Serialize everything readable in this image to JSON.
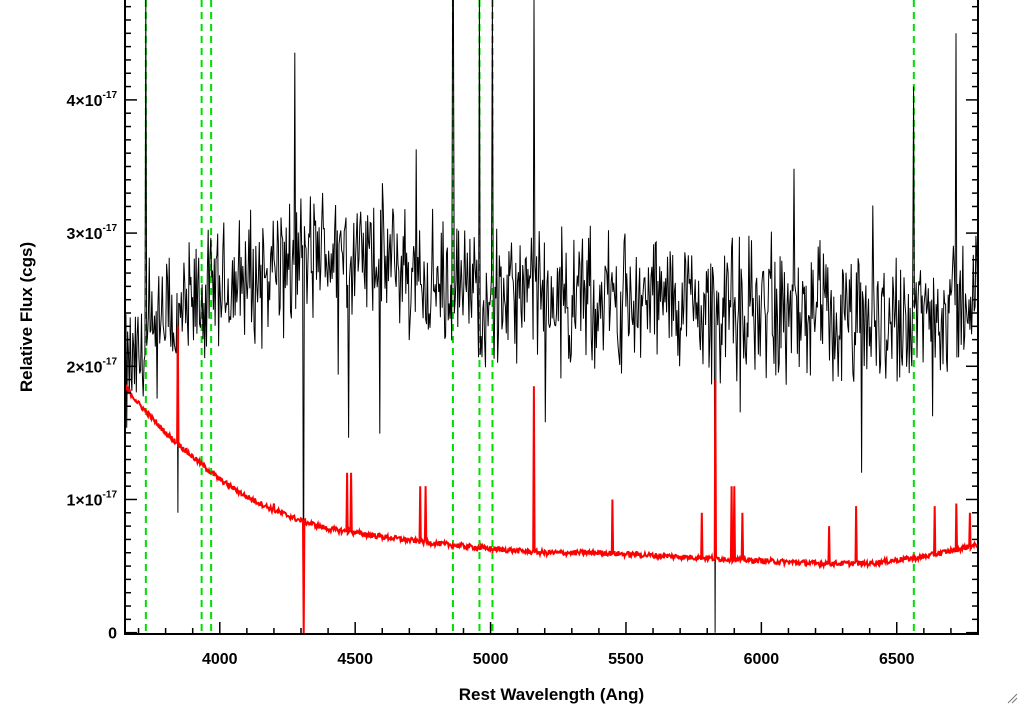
{
  "chart_data": {
    "type": "line",
    "xlabel": "Rest Wavelength (Ang)",
    "ylabel": "Relative Flux (cgs)",
    "xlim": [
      3650,
      6800
    ],
    "ylim": [
      -1e-19,
      4.75e-17
    ],
    "xticks": [
      4000,
      4500,
      5000,
      5500,
      6000,
      6500
    ],
    "xtick_labels": [
      "4000",
      "4500",
      "5000",
      "5500",
      "6000",
      "6500"
    ],
    "yticks": [
      0,
      1e-17,
      2e-17,
      3e-17,
      4e-17
    ],
    "ytick_labels": [
      {
        "base": "0",
        "exp": ""
      },
      {
        "base": "1×10",
        "exp": "-17"
      },
      {
        "base": "2×10",
        "exp": "-17"
      },
      {
        "base": "3×10",
        "exp": "-17"
      },
      {
        "base": "4×10",
        "exp": "-17"
      }
    ],
    "vertical_lines": [
      {
        "x": 3727,
        "style": "dashed",
        "color": "#00dd00"
      },
      {
        "x": 3933,
        "style": "dashed",
        "color": "#00dd00"
      },
      {
        "x": 3968,
        "style": "dashed",
        "color": "#00dd00"
      },
      {
        "x": 4861,
        "style": "dashed",
        "color": "#00dd00"
      },
      {
        "x": 4959,
        "style": "dashed",
        "color": "#00dd00"
      },
      {
        "x": 5007,
        "style": "dashed",
        "color": "#00dd00"
      },
      {
        "x": 6563,
        "style": "dashed",
        "color": "#00dd00"
      }
    ],
    "series": [
      {
        "role": "observed spectrum",
        "color": "#000000",
        "continuum": [
          {
            "x": 3650,
            "y": 1.9e-17
          },
          {
            "x": 3800,
            "y": 2.3e-17
          },
          {
            "x": 4000,
            "y": 2.55e-17
          },
          {
            "x": 4200,
            "y": 2.75e-17
          },
          {
            "x": 4400,
            "y": 2.85e-17
          },
          {
            "x": 4600,
            "y": 2.8e-17
          },
          {
            "x": 4800,
            "y": 2.6e-17
          },
          {
            "x": 5000,
            "y": 2.55e-17
          },
          {
            "x": 5200,
            "y": 2.5e-17
          },
          {
            "x": 5500,
            "y": 2.5e-17
          },
          {
            "x": 5800,
            "y": 2.45e-17
          },
          {
            "x": 6000,
            "y": 2.45e-17
          },
          {
            "x": 6300,
            "y": 2.3e-17
          },
          {
            "x": 6500,
            "y": 2.35e-17
          },
          {
            "x": 6800,
            "y": 2.5e-17
          }
        ],
        "noise_amplitude": 4.5e-18,
        "spikes": [
          {
            "x": 3727,
            "y": 4.75e-17
          },
          {
            "x": 3845,
            "y": 9e-18
          },
          {
            "x": 4310,
            "y": 0.0
          },
          {
            "x": 4861,
            "y": 4.75e-17
          },
          {
            "x": 4959,
            "y": 4.75e-17
          },
          {
            "x": 5007,
            "y": 4.75e-17
          },
          {
            "x": 5160,
            "y": 4.75e-17
          },
          {
            "x": 5830,
            "y": 0.0
          },
          {
            "x": 6563,
            "y": 4.1e-17
          },
          {
            "x": 6720,
            "y": 4.5e-17
          },
          {
            "x": 6370,
            "y": 1.2e-17
          }
        ]
      },
      {
        "role": "error spectrum",
        "color": "#ff0000",
        "curve": [
          {
            "x": 3650,
            "y": 1.85e-17
          },
          {
            "x": 3700,
            "y": 1.72e-17
          },
          {
            "x": 3800,
            "y": 1.5e-17
          },
          {
            "x": 3900,
            "y": 1.32e-17
          },
          {
            "x": 4000,
            "y": 1.15e-17
          },
          {
            "x": 4100,
            "y": 1.02e-17
          },
          {
            "x": 4200,
            "y": 9.2e-18
          },
          {
            "x": 4300,
            "y": 8.4e-18
          },
          {
            "x": 4400,
            "y": 7.8e-18
          },
          {
            "x": 4600,
            "y": 7.2e-18
          },
          {
            "x": 4800,
            "y": 6.7e-18
          },
          {
            "x": 5000,
            "y": 6.3e-18
          },
          {
            "x": 5200,
            "y": 6e-18
          },
          {
            "x": 5400,
            "y": 6e-18
          },
          {
            "x": 5600,
            "y": 5.8e-18
          },
          {
            "x": 5800,
            "y": 5.6e-18
          },
          {
            "x": 6000,
            "y": 5.4e-18
          },
          {
            "x": 6200,
            "y": 5.2e-18
          },
          {
            "x": 6400,
            "y": 5.2e-18
          },
          {
            "x": 6600,
            "y": 5.7e-18
          },
          {
            "x": 6800,
            "y": 6.6e-18
          }
        ],
        "spikes": [
          {
            "x": 3845,
            "y": 2.3e-17
          },
          {
            "x": 4200,
            "y": 9.7e-18
          },
          {
            "x": 4310,
            "y": -1e-19
          },
          {
            "x": 4470,
            "y": 1.2e-17
          },
          {
            "x": 4485,
            "y": 1.2e-17
          },
          {
            "x": 4740,
            "y": 1.1e-17
          },
          {
            "x": 4760,
            "y": 1.1e-17
          },
          {
            "x": 5160,
            "y": 1.85e-17
          },
          {
            "x": 5450,
            "y": 1e-17
          },
          {
            "x": 5780,
            "y": 9e-18
          },
          {
            "x": 5830,
            "y": 1.9e-17
          },
          {
            "x": 5890,
            "y": 1.1e-17
          },
          {
            "x": 5900,
            "y": 1.1e-17
          },
          {
            "x": 5930,
            "y": 9e-18
          },
          {
            "x": 6250,
            "y": 8e-18
          },
          {
            "x": 6350,
            "y": 9.5e-18
          },
          {
            "x": 6640,
            "y": 9.5e-18
          },
          {
            "x": 6720,
            "y": 9.7e-18
          },
          {
            "x": 6770,
            "y": 9e-18
          }
        ]
      }
    ],
    "grid": false
  },
  "icons": {
    "resize_grip": "resize-grip-icon"
  }
}
